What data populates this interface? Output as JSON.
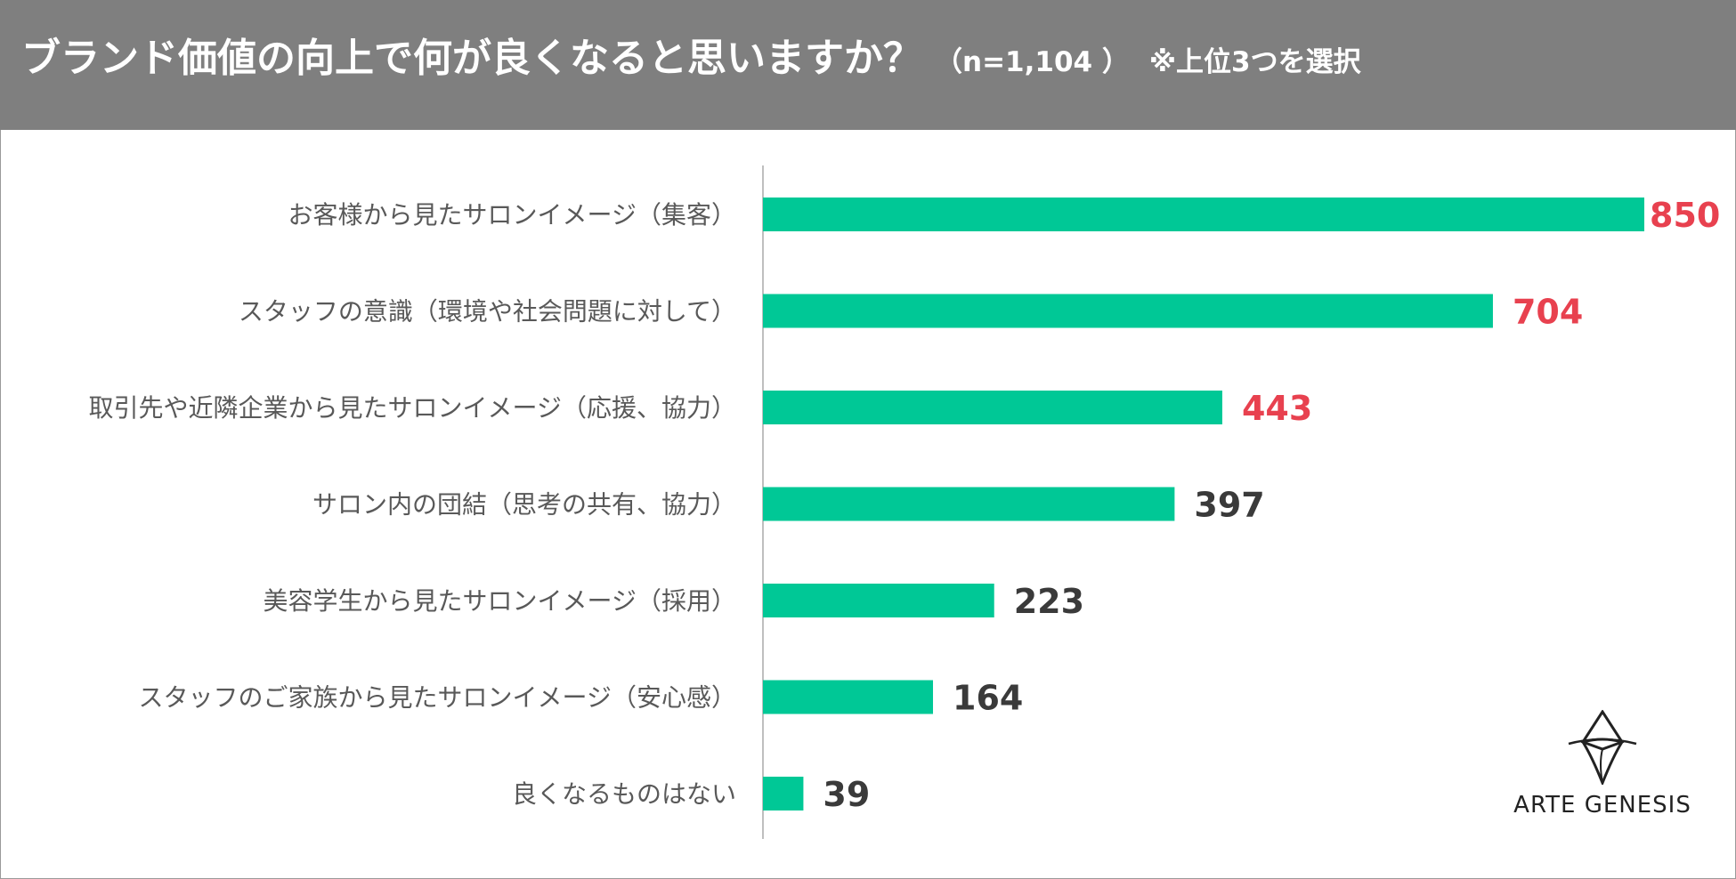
{
  "header": {
    "title": "ブランド価値の向上で何が良くなると思いますか？",
    "sample": "（n=1,104 ）",
    "note": "※上位3つを選択"
  },
  "colors": {
    "header_bg": "#7f7f7f",
    "bar": "#00c896",
    "highlight_value": "#e8414f",
    "normal_value": "#3a3a3a",
    "category_text": "#595959",
    "axis": "#bfbfbf"
  },
  "chart_data": {
    "type": "bar",
    "orientation": "horizontal",
    "title": "ブランド価値の向上で何が良くなると思いますか？",
    "categories": [
      "お客様から見たサロンイメージ（集客）",
      "スタッフの意識（環境や社会問題に対して）",
      "取引先や近隣企業から見たサロンイメージ（応援、協力）",
      "サロン内の団結（思考の共有、協力）",
      "美容学生から見たサロンイメージ（採用）",
      "スタッフのご家族から見たサロンイメージ（安心感）",
      "良くなるものはない"
    ],
    "values": [
      850,
      704,
      443,
      397,
      223,
      164,
      39
    ],
    "value_labels": [
      "850",
      "704",
      "443",
      "397",
      "223",
      "164",
      "39"
    ],
    "highlighted": [
      true,
      true,
      true,
      false,
      false,
      false,
      false
    ],
    "xlim": [
      0,
      850
    ],
    "grid": false,
    "legend": "none"
  },
  "logo": {
    "text": "ARTE GENESIS",
    "icon": "arte-genesis-diamond-icon"
  }
}
